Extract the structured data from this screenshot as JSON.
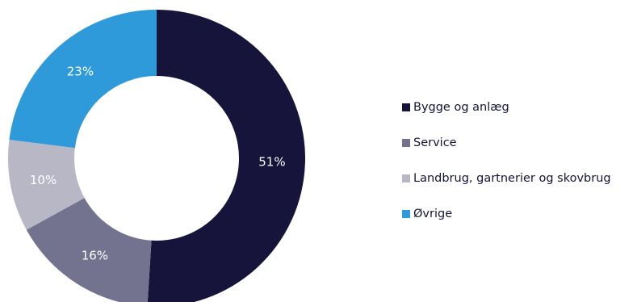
{
  "chart_data": {
    "type": "pie",
    "variant": "donut",
    "title": "",
    "categories": [
      "Bygge og anlæg",
      "Service",
      "Landbrug, gartnerier og skovbrug",
      "Øvrige"
    ],
    "values": [
      51,
      16,
      10,
      23
    ],
    "labels": [
      "51%",
      "16%",
      "10%",
      "23%"
    ],
    "colors": [
      "#16143a",
      "#737390",
      "#b7b7c6",
      "#2e9ad9"
    ],
    "legend_position": "right",
    "start_angle_deg": 0,
    "direction": "clockwise"
  }
}
